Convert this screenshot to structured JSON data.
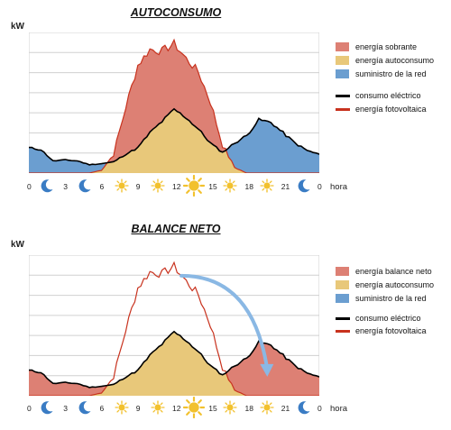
{
  "colors": {
    "surplus": "#dd8074",
    "self": "#e8c87a",
    "grid": "#6b9ed0",
    "balance": "#dd8074",
    "consumption": "#000000",
    "pv": "#c8321e",
    "arrow": "#8ab8e4",
    "gridline": "#d0d0d0",
    "sun": "#f2c12e",
    "moon": "#3a7cc4"
  },
  "x_axis": {
    "hours": [
      "0",
      "3",
      "6",
      "9",
      "12",
      "15",
      "18",
      "21",
      "0"
    ],
    "label": "hora",
    "icons": [
      "moon-icon",
      "moon-icon",
      "moon-icon",
      "sun-icon",
      "sun-icon",
      "sun-icon",
      "sun-icon",
      "sun-icon",
      "sun-icon",
      "sun-icon",
      "sun-icon",
      "sun-icon",
      "moon-icon",
      "moon-icon"
    ]
  },
  "chart_data": [
    {
      "type": "area",
      "title": "AUTOCONSUMO",
      "ylabel": "kW",
      "grid": true,
      "legend_position": "right",
      "legend": [
        {
          "label": "energía sobrante",
          "kind": "area"
        },
        {
          "label": "energía autoconsumo",
          "kind": "area"
        },
        {
          "label": "suministro de la red",
          "kind": "area"
        },
        {
          "label": "consumo eléctrico",
          "kind": "line"
        },
        {
          "label": "energía fotovoltaica",
          "kind": "line"
        }
      ],
      "series": [
        {
          "name": "consumo eléctrico",
          "x": [
            0,
            1,
            2,
            3,
            4,
            5,
            6,
            7,
            8,
            9,
            10,
            11,
            12,
            13,
            14,
            15,
            16,
            17,
            18,
            19,
            20,
            21,
            22,
            23,
            24
          ],
          "values": [
            27,
            25,
            13,
            14,
            13,
            9,
            10,
            12,
            20,
            27,
            43,
            55,
            68,
            59,
            47,
            32,
            22,
            32,
            40,
            57,
            54,
            43,
            32,
            24,
            20
          ]
        },
        {
          "name": "energía fotovoltaica",
          "x": [
            0,
            1,
            2,
            3,
            4,
            5,
            6,
            7,
            8,
            9,
            10,
            11,
            12,
            13,
            14,
            15,
            16,
            17,
            18,
            19,
            20,
            21,
            22,
            23,
            24
          ],
          "values": [
            0,
            0,
            0,
            0,
            0,
            0,
            3,
            20,
            70,
            115,
            132,
            130,
            138,
            122,
            108,
            76,
            30,
            6,
            0,
            0,
            0,
            0,
            0,
            0,
            0
          ]
        }
      ],
      "ylim": [
        0,
        150
      ]
    },
    {
      "type": "area",
      "title": "BALANCE NETO",
      "ylabel": "kW",
      "grid": true,
      "legend_position": "right",
      "legend": [
        {
          "label": "energía balance neto",
          "kind": "area"
        },
        {
          "label": "energía autoconsumo",
          "kind": "area"
        },
        {
          "label": "suministro de la red",
          "kind": "area"
        },
        {
          "label": "consumo eléctrico",
          "kind": "line"
        },
        {
          "label": "energía fotovoltaica",
          "kind": "line"
        }
      ],
      "series": [
        {
          "name": "consumo eléctrico",
          "x": [
            0,
            1,
            2,
            3,
            4,
            5,
            6,
            7,
            8,
            9,
            10,
            11,
            12,
            13,
            14,
            15,
            16,
            17,
            18,
            19,
            20,
            21,
            22,
            23,
            24
          ],
          "values": [
            27,
            25,
            13,
            14,
            13,
            9,
            10,
            12,
            20,
            27,
            43,
            55,
            68,
            59,
            47,
            32,
            22,
            32,
            40,
            57,
            54,
            43,
            32,
            24,
            20
          ]
        },
        {
          "name": "energía fotovoltaica",
          "x": [
            0,
            1,
            2,
            3,
            4,
            5,
            6,
            7,
            8,
            9,
            10,
            11,
            12,
            13,
            14,
            15,
            16,
            17,
            18,
            19,
            20,
            21,
            22,
            23,
            24
          ],
          "values": [
            0,
            0,
            0,
            0,
            0,
            0,
            3,
            20,
            70,
            115,
            132,
            130,
            138,
            122,
            108,
            76,
            30,
            6,
            0,
            0,
            0,
            0,
            0,
            0,
            0
          ]
        }
      ],
      "ylim": [
        0,
        150
      ]
    }
  ]
}
